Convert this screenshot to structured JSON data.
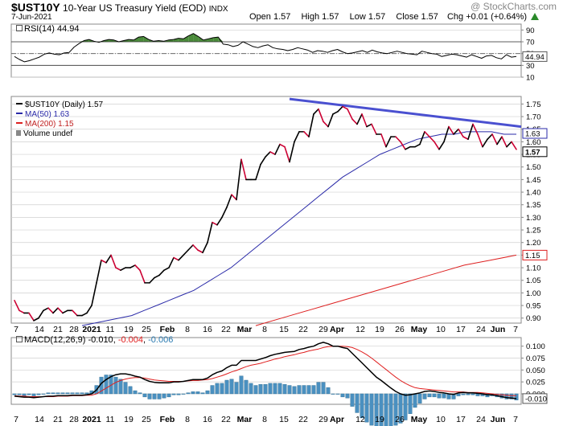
{
  "header": {
    "symbol": "$UST10Y",
    "name": "10-Year US Treasury Yield (EOD)",
    "exchange": "INDX",
    "date": "7-Jun-2021",
    "watermark": "@ StockCharts.com",
    "open": "Open 1.57",
    "high": "High 1.57",
    "low": "Low 1.57",
    "close": "Close 1.57",
    "chg": "Chg +0.01 (+0.64%)",
    "chg_icon": "triangle-up-icon"
  },
  "colors": {
    "price": "#000000",
    "price_down": "#cc0033",
    "ma50": "#2a2aa8",
    "ma200": "#dd2020",
    "trendline": "#4a50d0",
    "macd": "#000000",
    "signal": "#e02020",
    "histogram": "#4a90c0",
    "rsi_fill": "#4a8a3a",
    "grid": "#d0d0d0"
  },
  "x_axis": {
    "labels": [
      "7",
      "14",
      "21",
      "28",
      "2021",
      "11",
      "19",
      "25",
      "Feb",
      "8",
      "16",
      "22",
      "Mar",
      "8",
      "15",
      "22",
      "29",
      "Apr",
      "12",
      "19",
      "26",
      "May",
      "10",
      "17",
      "24",
      "Jun",
      "7"
    ]
  },
  "chart_data": [
    {
      "type": "line",
      "panel": "rsi",
      "legend": "RSI(14) 44.94",
      "ylim": [
        10,
        100
      ],
      "y_ticks": [
        10,
        30,
        50,
        70,
        90
      ],
      "last_value_label": "44.94",
      "overbought": 70,
      "oversold": 30,
      "values": [
        45,
        40,
        36,
        38,
        41,
        44,
        49,
        51,
        49,
        48,
        51,
        52,
        61,
        67,
        72,
        74,
        71,
        69,
        72,
        74,
        73,
        70,
        72,
        74,
        73,
        78,
        79,
        74,
        71,
        72,
        71,
        73,
        74,
        76,
        75,
        80,
        84,
        79,
        73,
        75,
        77,
        78,
        66,
        65,
        62,
        64,
        70,
        66,
        62,
        60,
        63,
        65,
        60,
        58,
        57,
        55,
        57,
        60,
        58,
        56,
        52,
        55,
        54,
        52,
        55,
        57,
        53,
        50,
        51,
        53,
        55,
        52,
        56,
        53,
        51,
        50,
        52,
        54,
        52,
        50,
        49,
        48,
        54,
        52,
        50,
        49,
        45,
        47,
        49,
        48,
        46,
        44,
        48,
        45,
        42,
        46,
        47,
        43,
        41,
        48,
        44,
        45
      ]
    },
    {
      "type": "line",
      "panel": "price",
      "ylim": [
        0.88,
        1.78
      ],
      "y_ticks": [
        0.9,
        0.95,
        1.0,
        1.05,
        1.1,
        1.15,
        1.2,
        1.25,
        1.3,
        1.35,
        1.4,
        1.45,
        1.5,
        1.55,
        1.6,
        1.65,
        1.7,
        1.75
      ],
      "tag_labels": [
        "1.63",
        "1.57",
        "1.15"
      ],
      "legend": [
        "$UST10Y (Daily) 1.57",
        "MA(50) 1.63",
        "MA(200) 1.15",
        "Volume undef"
      ],
      "series": [
        {
          "name": "$UST10Y (Daily) 1.57",
          "values": [
            0.97,
            0.93,
            0.92,
            0.92,
            0.89,
            0.9,
            0.93,
            0.94,
            0.92,
            0.94,
            0.92,
            0.93,
            0.93,
            0.91,
            0.91,
            0.92,
            0.95,
            1.04,
            1.13,
            1.12,
            1.15,
            1.1,
            1.09,
            1.1,
            1.1,
            1.11,
            1.09,
            1.04,
            1.04,
            1.06,
            1.07,
            1.09,
            1.1,
            1.14,
            1.13,
            1.15,
            1.17,
            1.19,
            1.17,
            1.16,
            1.2,
            1.28,
            1.27,
            1.3,
            1.34,
            1.39,
            1.37,
            1.53,
            1.45,
            1.45,
            1.45,
            1.51,
            1.54,
            1.56,
            1.55,
            1.59,
            1.58,
            1.52,
            1.6,
            1.64,
            1.64,
            1.62,
            1.71,
            1.73,
            1.68,
            1.66,
            1.71,
            1.72,
            1.74,
            1.73,
            1.69,
            1.67,
            1.71,
            1.66,
            1.67,
            1.63,
            1.63,
            1.58,
            1.62,
            1.62,
            1.6,
            1.57,
            1.58,
            1.58,
            1.59,
            1.64,
            1.62,
            1.6,
            1.57,
            1.6,
            1.66,
            1.63,
            1.65,
            1.62,
            1.61,
            1.67,
            1.63,
            1.58,
            1.61,
            1.63,
            1.59,
            1.62,
            1.58,
            1.6,
            1.57
          ]
        },
        {
          "name": "MA(50) 1.63",
          "x_start_index": 0,
          "values": [
            0.87,
            0.88,
            0.89,
            0.9,
            0.91,
            0.93,
            0.95,
            0.97,
            0.99,
            1.01,
            1.04,
            1.07,
            1.1,
            1.14,
            1.18,
            1.22,
            1.26,
            1.3,
            1.34,
            1.38,
            1.42,
            1.46,
            1.49,
            1.52,
            1.55,
            1.57,
            1.59,
            1.61,
            1.62,
            1.63,
            1.63,
            1.64,
            1.64,
            1.64,
            1.63,
            1.63
          ]
        },
        {
          "name": "MA(200) 1.15",
          "values": [
            0.87,
            0.9,
            0.93,
            0.96,
            0.99,
            1.02,
            1.05,
            1.08,
            1.11,
            1.13,
            1.15
          ]
        },
        {
          "name": "trendline",
          "values": [
            1.77,
            1.66
          ]
        }
      ]
    },
    {
      "type": "line",
      "panel": "macd",
      "legend": [
        "MACD(12,26,9)",
        "-0.010",
        "-0.004",
        "-0.006"
      ],
      "ylim": [
        -0.022,
        0.118
      ],
      "y_ticks": [
        0.0,
        0.025,
        0.05,
        0.075,
        0.1
      ],
      "last_value_label": "-0.010",
      "series": [
        {
          "name": "MACD(12,26,9)",
          "values": [
            -0.005,
            -0.006,
            -0.007,
            -0.007,
            -0.008,
            -0.007,
            -0.006,
            -0.005,
            -0.005,
            -0.004,
            -0.004,
            -0.004,
            -0.003,
            -0.003,
            -0.003,
            -0.002,
            0.0,
            0.008,
            0.022,
            0.03,
            0.036,
            0.04,
            0.042,
            0.042,
            0.04,
            0.037,
            0.035,
            0.03,
            0.026,
            0.024,
            0.023,
            0.023,
            0.023,
            0.025,
            0.025,
            0.026,
            0.028,
            0.03,
            0.03,
            0.03,
            0.033,
            0.04,
            0.045,
            0.048,
            0.055,
            0.06,
            0.06,
            0.07,
            0.07,
            0.07,
            0.07,
            0.073,
            0.076,
            0.08,
            0.083,
            0.085,
            0.087,
            0.088,
            0.089,
            0.093,
            0.095,
            0.098,
            0.1,
            0.105,
            0.108,
            0.105,
            0.1,
            0.1,
            0.097,
            0.095,
            0.085,
            0.075,
            0.065,
            0.055,
            0.045,
            0.035,
            0.028,
            0.02,
            0.012,
            0.005,
            0.0,
            -0.003,
            -0.002,
            0.0,
            0.002,
            0.005,
            0.006,
            0.005,
            0.003,
            0.002,
            0.0,
            -0.001,
            0.002,
            0.003,
            0.002,
            0.002,
            0.001,
            0.0,
            -0.002,
            -0.002,
            -0.004,
            -0.006,
            -0.008,
            -0.009,
            -0.01
          ]
        },
        {
          "name": "signal",
          "values": [
            -0.004,
            -0.005,
            -0.005,
            -0.006,
            -0.006,
            -0.006,
            -0.006,
            -0.006,
            -0.006,
            -0.005,
            -0.005,
            -0.005,
            -0.004,
            -0.004,
            -0.004,
            -0.003,
            -0.003,
            0.0,
            0.006,
            0.012,
            0.018,
            0.024,
            0.028,
            0.031,
            0.033,
            0.034,
            0.034,
            0.033,
            0.031,
            0.029,
            0.028,
            0.027,
            0.026,
            0.026,
            0.026,
            0.026,
            0.027,
            0.028,
            0.028,
            0.029,
            0.03,
            0.032,
            0.035,
            0.038,
            0.042,
            0.046,
            0.049,
            0.053,
            0.057,
            0.06,
            0.062,
            0.064,
            0.067,
            0.07,
            0.073,
            0.075,
            0.078,
            0.08,
            0.082,
            0.085,
            0.087,
            0.09,
            0.092,
            0.094,
            0.097,
            0.099,
            0.1,
            0.1,
            0.1,
            0.099,
            0.097,
            0.093,
            0.088,
            0.082,
            0.075,
            0.067,
            0.059,
            0.051,
            0.043,
            0.035,
            0.028,
            0.022,
            0.017,
            0.013,
            0.011,
            0.01,
            0.009,
            0.008,
            0.007,
            0.006,
            0.005,
            0.004,
            0.004,
            0.004,
            0.003,
            0.003,
            0.003,
            0.002,
            0.001,
            0.0,
            -0.001,
            -0.002,
            -0.003,
            -0.004,
            -0.004
          ]
        }
      ]
    }
  ]
}
